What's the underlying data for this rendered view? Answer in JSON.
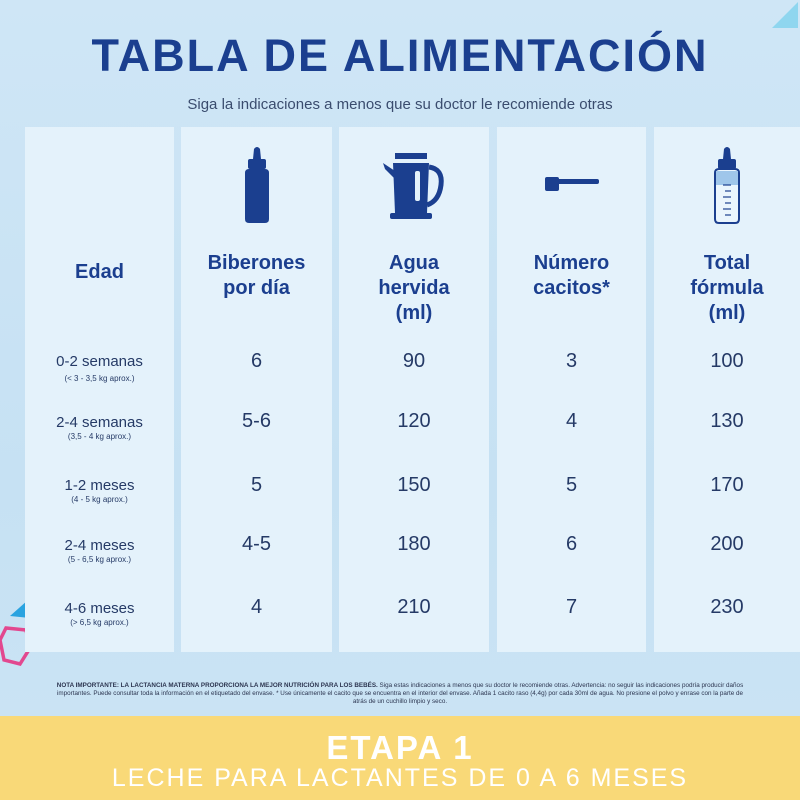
{
  "title": "TABLA DE ALIMENTACIÓN",
  "subtitle": "Siga la indicaciones a menos que su doctor le recomiende otras",
  "columns": [
    {
      "header": "Edad",
      "icon": ""
    },
    {
      "header": "Biberones\npor día",
      "icon": "baby-bottle-icon"
    },
    {
      "header": "Agua\nhervida\n(ml)",
      "icon": "kettle-icon"
    },
    {
      "header": "Número\ncacitos*",
      "icon": "scoop-icon"
    },
    {
      "header": "Total\nfórmula\n(ml)",
      "icon": "measuring-bottle-icon"
    }
  ],
  "rows": [
    {
      "age": "0-2 semanas",
      "weight": "(< 3 - 3,5 kg aprox.)",
      "bottles": "6",
      "water": "90",
      "scoops": "3",
      "total": "100"
    },
    {
      "age": "2-4 semanas",
      "weight": "(3,5 - 4 kg aprox.)",
      "bottles": "5-6",
      "water": "120",
      "scoops": "4",
      "total": "130"
    },
    {
      "age": "1-2 meses",
      "weight": "(4 - 5 kg aprox.)",
      "bottles": "5",
      "water": "150",
      "scoops": "5",
      "total": "170"
    },
    {
      "age": "2-4 meses",
      "weight": "(5 - 6,5 kg aprox.)",
      "bottles": "4-5",
      "water": "180",
      "scoops": "6",
      "total": "200"
    },
    {
      "age": "4-6 meses",
      "weight": "(> 6,5 kg aprox.)",
      "bottles": "4",
      "water": "210",
      "scoops": "7",
      "total": "230"
    }
  ],
  "note": {
    "bold": "NOTA IMPORTANTE: LA LACTANCIA MATERNA PROPORCIONA LA MEJOR NUTRICIÓN PARA LOS BEBÉS.",
    "text": " Siga estas indicaciones a menos que su doctor le recomiende otras. Advertencia: no seguir las indicaciones podría producir daños importantes. Puede consultar toda la información en el etiquetado del envase. * Use únicamente el cacito que se encuentra en el interior del envase. Añada 1 cacito raso (4,4g) por cada 30ml de agua. No presione el polvo y enrase con la parte de atrás de un cuchillo limpio y seco."
  },
  "footer": {
    "title": "ETAPA 1",
    "subtitle": "LECHE PARA LACTANTES DE 0 A 6 MESES"
  },
  "colors": {
    "primary": "#1b3f8f",
    "background": "#c9e3f4",
    "column": "#e4f2fb",
    "footer": "#f9d978"
  }
}
